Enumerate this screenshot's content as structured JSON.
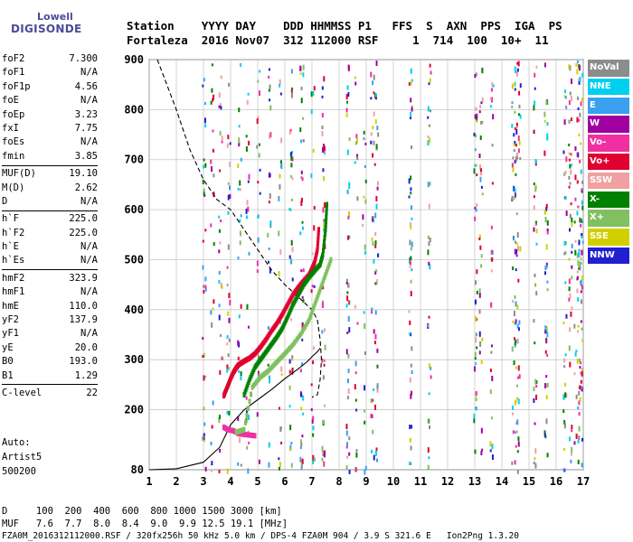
{
  "logo": {
    "line1": "Lowell",
    "line2": "DIGISONDE"
  },
  "header": {
    "line1": "Station    YYYY DAY    DDD HHMMSS P1   FFS  S  AXN  PPS  IGA  PS",
    "line2": "Fortaleza  2016 Nov07  312 112000 RSF     1  714  100  10+  11"
  },
  "params": {
    "group1": [
      {
        "k": "foF2",
        "v": "7.300"
      },
      {
        "k": "foF1",
        "v": "N/A"
      },
      {
        "k": "foF1p",
        "v": "4.56"
      },
      {
        "k": "foE",
        "v": "N/A"
      },
      {
        "k": "foEp",
        "v": "3.23"
      },
      {
        "k": "fxI",
        "v": "7.75"
      },
      {
        "k": "foEs",
        "v": "N/A"
      },
      {
        "k": "fmin",
        "v": "3.85"
      }
    ],
    "group2": [
      {
        "k": "MUF(D)",
        "v": "19.10"
      },
      {
        "k": "M(D)",
        "v": "2.62"
      },
      {
        "k": "D",
        "v": "N/A"
      }
    ],
    "group3": [
      {
        "k": "h`F",
        "v": "225.0"
      },
      {
        "k": "h`F2",
        "v": "225.0"
      },
      {
        "k": "h`E",
        "v": "N/A"
      },
      {
        "k": "h`Es",
        "v": "N/A"
      }
    ],
    "group4": [
      {
        "k": "hmF2",
        "v": "323.9"
      },
      {
        "k": "hmF1",
        "v": "N/A"
      },
      {
        "k": "hmE",
        "v": "110.0"
      },
      {
        "k": "yF2",
        "v": "137.9"
      },
      {
        "k": "yF1",
        "v": "N/A"
      },
      {
        "k": "yE",
        "v": "20.0"
      },
      {
        "k": "B0",
        "v": "193.0"
      },
      {
        "k": "B1",
        "v": "1.29"
      }
    ],
    "group5": [
      {
        "k": "C-level",
        "v": "22"
      }
    ]
  },
  "notes": {
    "auto": "Auto:",
    "artist": "Artist5",
    "version": "500200"
  },
  "legend": [
    {
      "label": "NoVal",
      "color": "#8c8c8c"
    },
    {
      "label": "NNE",
      "color": "#00d0f0"
    },
    {
      "label": "E",
      "color": "#3aa0f0"
    },
    {
      "label": "W",
      "color": "#a000a0"
    },
    {
      "label": "Vo-",
      "color": "#f030a0"
    },
    {
      "label": "Vo+",
      "color": "#e00030"
    },
    {
      "label": "SSW",
      "color": "#f0a0a0"
    },
    {
      "label": "X-",
      "color": "#008000"
    },
    {
      "label": "X+",
      "color": "#80c060"
    },
    {
      "label": "SSE",
      "color": "#d0d000"
    },
    {
      "label": "NNW",
      "color": "#2020d0"
    }
  ],
  "bottom": {
    "d_row": "D     100  200  400  600  800 1000 1500 3000 [km]",
    "muf_row": "MUF   7.6  7.7  8.0  8.4  9.0  9.9 12.5 19.1 [MHz]",
    "footer": "FZA0M_2016312112000.RSF / 320fx256h 50 kHz 5.0 km / DPS-4 FZA0M 904 / 3.9 S 321.6 E   Ion2Png 1.3.20"
  },
  "chart_data": {
    "type": "scatter",
    "title": "",
    "xlabel": "",
    "ylabel": "",
    "xlim": [
      1,
      17
    ],
    "ylim": [
      80,
      900
    ],
    "x_ticks": [
      1,
      2,
      3,
      4,
      5,
      6,
      7,
      8,
      9,
      10,
      11,
      12,
      13,
      14,
      15,
      16,
      17
    ],
    "y_ticks": [
      80,
      200,
      300,
      400,
      500,
      600,
      700,
      800,
      900
    ],
    "grid": true,
    "legend_position": "right",
    "series": [
      {
        "name": "Vo+",
        "color": "#e00030",
        "x": [
          3.75,
          3.8,
          3.9,
          4.0,
          4.1,
          4.2,
          4.3,
          4.5,
          4.7,
          4.9,
          5.1,
          5.3,
          5.5,
          5.7,
          5.9,
          6.1,
          6.3,
          6.5,
          6.7,
          6.9,
          7.0,
          7.1,
          7.2,
          7.25
        ],
        "y": [
          228,
          235,
          248,
          262,
          274,
          283,
          290,
          297,
          303,
          312,
          325,
          340,
          357,
          372,
          390,
          410,
          430,
          445,
          458,
          470,
          482,
          495,
          520,
          560
        ]
      },
      {
        "name": "X-",
        "color": "#008000",
        "x": [
          4.5,
          4.7,
          4.9,
          5.1,
          5.3,
          5.5,
          5.7,
          5.9,
          6.1,
          6.3,
          6.5,
          6.7,
          6.9,
          7.1,
          7.3,
          7.4,
          7.5,
          7.55
        ],
        "y": [
          230,
          260,
          285,
          300,
          315,
          330,
          345,
          362,
          385,
          410,
          430,
          450,
          465,
          478,
          490,
          510,
          560,
          610
        ]
      },
      {
        "name": "Vo-",
        "color": "#f030a0",
        "x": [
          3.75,
          3.9,
          4.1,
          4.3,
          4.6,
          4.9
        ],
        "y": [
          165,
          160,
          158,
          152,
          150,
          148
        ]
      },
      {
        "name": "X+",
        "color": "#80c060",
        "x": [
          4.2,
          4.5,
          4.8,
          5.1,
          5.4,
          5.7,
          6.0,
          6.3,
          6.6,
          6.9,
          7.1,
          7.3,
          7.5,
          7.7
        ],
        "y": [
          155,
          160,
          245,
          265,
          278,
          295,
          312,
          330,
          352,
          380,
          410,
          440,
          470,
          500
        ]
      }
    ],
    "profile": {
      "name": "electron density profile",
      "x": [
        1.0,
        2.0,
        3.0,
        3.6,
        4.0,
        4.5,
        5.0,
        5.5,
        6.0,
        6.5,
        6.8,
        7.0,
        7.2,
        7.3
      ],
      "y": [
        80,
        82,
        95,
        125,
        170,
        200,
        220,
        240,
        262,
        282,
        295,
        306,
        316,
        323
      ]
    },
    "virtual_height": {
      "name": "modeled virtual height trace",
      "x": [
        1.3,
        2.0,
        2.5,
        3.0,
        3.5,
        4.0,
        4.5,
        5.0,
        5.5,
        6.0,
        6.4,
        6.8,
        7.0,
        7.1,
        7.2,
        7.3,
        7.35,
        7.3,
        7.2,
        7.0
      ],
      "y": [
        900,
        800,
        720,
        660,
        620,
        600,
        560,
        520,
        480,
        450,
        430,
        410,
        400,
        390,
        380,
        340,
        300,
        260,
        230,
        225
      ]
    }
  }
}
